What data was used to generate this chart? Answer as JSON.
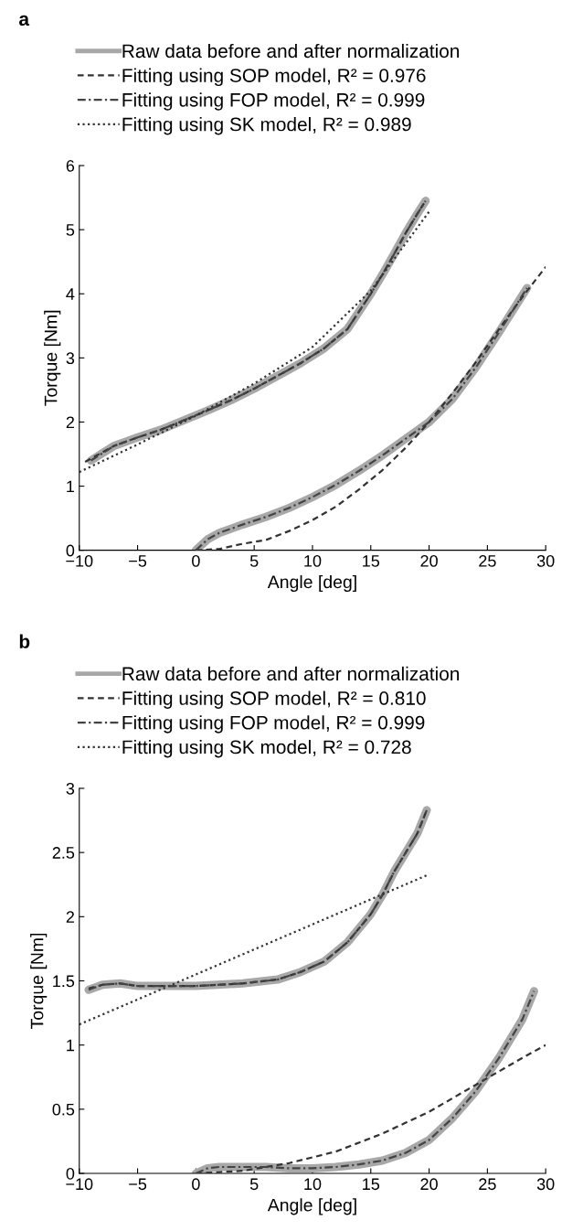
{
  "chart_data": [
    {
      "type": "line",
      "xlabel": "Angle [deg]",
      "ylabel": "Torque [Nm]",
      "annotations": [
        "a"
      ],
      "legend": "top",
      "grid": false,
      "xlim": [
        -10,
        30
      ],
      "xticks": [
        -10,
        -5,
        0,
        5,
        10,
        15,
        20,
        25,
        30
      ],
      "ylim": [
        0,
        6
      ],
      "yticks": [
        0,
        1,
        2,
        3,
        4,
        5,
        6
      ],
      "series": [
        {
          "name": "Raw data before and after normalization",
          "color": "#a8a8a8",
          "line_style": "solid",
          "x": [
            -9,
            -7,
            -5,
            -3,
            -1,
            1,
            3,
            5,
            7,
            9,
            11,
            13,
            15,
            16,
            17,
            18,
            19,
            19.7,
            null,
            0,
            1,
            2,
            4,
            6,
            8,
            10,
            12,
            14,
            16,
            18,
            20,
            22,
            24,
            26,
            28.4
          ],
          "values": [
            1.4,
            1.63,
            1.76,
            1.88,
            2.03,
            2.18,
            2.34,
            2.52,
            2.72,
            2.92,
            3.15,
            3.45,
            4.0,
            4.3,
            4.62,
            4.95,
            5.25,
            5.45,
            null,
            0,
            0.17,
            0.27,
            0.4,
            0.52,
            0.66,
            0.83,
            1.02,
            1.24,
            1.48,
            1.74,
            2.0,
            2.36,
            2.85,
            3.4,
            4.09
          ]
        },
        {
          "name": "Fitting using SOP model, R² = 0.976",
          "color": "#333333",
          "line_style": "dashed",
          "x": [
            -9.5,
            -7,
            -5,
            -3,
            -1,
            1,
            3,
            5,
            7,
            9,
            11,
            13,
            15,
            16,
            17,
            18,
            19,
            19.7,
            null,
            0,
            2,
            4,
            6,
            8,
            10,
            12,
            14,
            16,
            18,
            20,
            22,
            24,
            26,
            28,
            30
          ],
          "values": [
            1.38,
            1.63,
            1.76,
            1.88,
            2.03,
            2.18,
            2.34,
            2.52,
            2.72,
            2.92,
            3.15,
            3.45,
            4.0,
            4.3,
            4.62,
            4.95,
            5.25,
            5.45,
            null,
            0,
            0.02,
            0.1,
            0.16,
            0.3,
            0.47,
            0.68,
            0.95,
            1.25,
            1.6,
            2.0,
            2.45,
            2.93,
            3.45,
            3.95,
            4.42
          ]
        },
        {
          "name": "Fitting using FOP model, R² = 0.999",
          "color": "#444444",
          "line_style": "dashdot",
          "x": [
            -9,
            -7,
            -5,
            -3,
            -1,
            1,
            3,
            5,
            7,
            9,
            11,
            13,
            15,
            16,
            17,
            18,
            19,
            19.7,
            null,
            0,
            1,
            2,
            4,
            6,
            8,
            10,
            12,
            14,
            16,
            18,
            20,
            22,
            24,
            26,
            28.4
          ],
          "values": [
            1.4,
            1.63,
            1.76,
            1.88,
            2.03,
            2.18,
            2.34,
            2.52,
            2.72,
            2.92,
            3.15,
            3.45,
            4.0,
            4.3,
            4.62,
            4.95,
            5.25,
            5.45,
            null,
            0,
            0.17,
            0.27,
            0.4,
            0.52,
            0.66,
            0.83,
            1.02,
            1.24,
            1.48,
            1.74,
            2.0,
            2.36,
            2.85,
            3.4,
            4.09
          ]
        },
        {
          "name": "Fitting using SK model, R² = 0.989",
          "color": "#333333",
          "line_style": "dotted",
          "x": [
            -10,
            -5,
            0,
            5,
            10,
            15,
            20
          ],
          "values": [
            1.22,
            1.65,
            2.1,
            2.6,
            3.17,
            4.05,
            5.28
          ]
        }
      ]
    },
    {
      "type": "line",
      "xlabel": "Angle [deg]",
      "ylabel": "Torque [Nm]",
      "annotations": [
        "b"
      ],
      "legend": "top",
      "grid": false,
      "xlim": [
        -10,
        30
      ],
      "xticks": [
        -10,
        -5,
        0,
        5,
        10,
        15,
        20,
        25,
        30
      ],
      "ylim": [
        0,
        3
      ],
      "yticks": [
        0,
        0.5,
        1,
        1.5,
        2,
        2.5,
        3
      ],
      "series": [
        {
          "name": "Raw data before and after normalization",
          "color": "#a8a8a8",
          "line_style": "solid",
          "x": [
            -9.2,
            -8,
            -6.5,
            -5,
            0,
            4,
            7,
            9,
            11,
            13,
            15,
            16,
            17,
            18,
            19,
            19.8,
            null,
            0,
            1,
            2,
            4,
            6,
            8,
            10,
            12,
            14,
            16,
            18,
            20,
            22,
            24,
            26,
            28,
            29
          ],
          "values": [
            1.43,
            1.47,
            1.48,
            1.46,
            1.46,
            1.48,
            1.51,
            1.57,
            1.65,
            1.8,
            2.02,
            2.17,
            2.35,
            2.5,
            2.65,
            2.83,
            null,
            0,
            0.04,
            0.05,
            0.05,
            0.05,
            0.04,
            0.04,
            0.05,
            0.07,
            0.1,
            0.16,
            0.26,
            0.43,
            0.64,
            0.9,
            1.2,
            1.42
          ]
        },
        {
          "name": "Fitting using SOP model, R² = 0.810",
          "color": "#333333",
          "line_style": "dashed",
          "x": [
            -9.2,
            -8,
            -6.5,
            -5,
            0,
            4,
            7,
            9,
            11,
            13,
            15,
            16,
            17,
            18,
            19,
            19.8,
            null,
            0,
            4,
            8,
            12,
            16,
            20,
            24,
            28,
            30
          ],
          "values": [
            1.44,
            1.47,
            1.48,
            1.46,
            1.46,
            1.48,
            1.51,
            1.57,
            1.65,
            1.8,
            2.02,
            2.17,
            2.35,
            2.5,
            2.65,
            2.83,
            null,
            0,
            0.02,
            0.08,
            0.17,
            0.31,
            0.48,
            0.69,
            0.9,
            1.0
          ]
        },
        {
          "name": "Fitting using FOP model, R² = 0.999",
          "color": "#444444",
          "line_style": "dashdot",
          "x": [
            -9.2,
            -8,
            -6.5,
            -5,
            0,
            4,
            7,
            9,
            11,
            13,
            15,
            16,
            17,
            18,
            19,
            19.8,
            null,
            0,
            1,
            2,
            4,
            6,
            8,
            10,
            12,
            14,
            16,
            18,
            20,
            22,
            24,
            26,
            28,
            29
          ],
          "values": [
            1.43,
            1.47,
            1.48,
            1.46,
            1.46,
            1.48,
            1.51,
            1.57,
            1.65,
            1.8,
            2.02,
            2.17,
            2.35,
            2.5,
            2.65,
            2.83,
            null,
            0,
            0.04,
            0.05,
            0.05,
            0.05,
            0.04,
            0.04,
            0.05,
            0.07,
            0.1,
            0.16,
            0.26,
            0.43,
            0.64,
            0.9,
            1.2,
            1.42
          ]
        },
        {
          "name": "Fitting using SK model, R² = 0.728",
          "color": "#333333",
          "line_style": "dotted",
          "x": [
            -10,
            20
          ],
          "values": [
            1.16,
            2.33
          ]
        }
      ]
    }
  ]
}
